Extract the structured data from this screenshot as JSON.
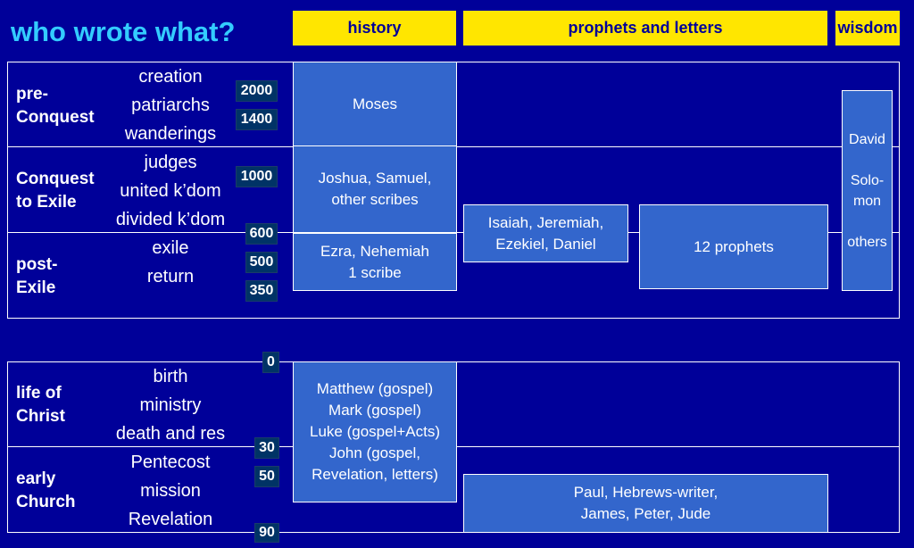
{
  "title": "who wrote what?",
  "headers": [
    "history",
    "prophets and letters",
    "wisdom"
  ],
  "colors": {
    "background": "#000099",
    "title": "#33ccff",
    "header_fill": "#ffe600",
    "header_text": "#000099",
    "box_fill": "#3366cc",
    "date_fill": "#003366"
  },
  "periods": [
    {
      "label": "pre-\nConquest",
      "events": [
        "creation",
        "patriarchs",
        "wanderings"
      ]
    },
    {
      "label": "Conquest\nto Exile",
      "events": [
        "judges",
        "united k’dom",
        "divided k’dom"
      ]
    },
    {
      "label": "post-\nExile",
      "events": [
        "exile",
        "return"
      ]
    },
    {
      "label": "life of\nChrist",
      "events": [
        "birth",
        "ministry",
        "death and res"
      ]
    },
    {
      "label": "early\nChurch",
      "events": [
        "Pentecost",
        "mission",
        "Revelation"
      ]
    }
  ],
  "dates": [
    "2000",
    "1400",
    "1000",
    "600",
    "500",
    "350",
    "0",
    "30",
    "50",
    "90"
  ],
  "authors": {
    "moses": "Moses",
    "joshua": "Joshua, Samuel,\nother scribes",
    "ezra": "Ezra, Nehemiah\n1 scribe",
    "isaiah": "Isaiah, Jeremiah,\nEzekiel, Daniel",
    "twelve": "12 prophets",
    "wisdom": "David\n\nSolo-\nmon\n\nothers",
    "gospels": "Matthew (gospel)\nMark (gospel)\nLuke (gospel+Acts)\nJohn (gospel,\nRevelation, letters)",
    "paul": "Paul, Hebrews-writer,\nJames, Peter, Jude"
  }
}
